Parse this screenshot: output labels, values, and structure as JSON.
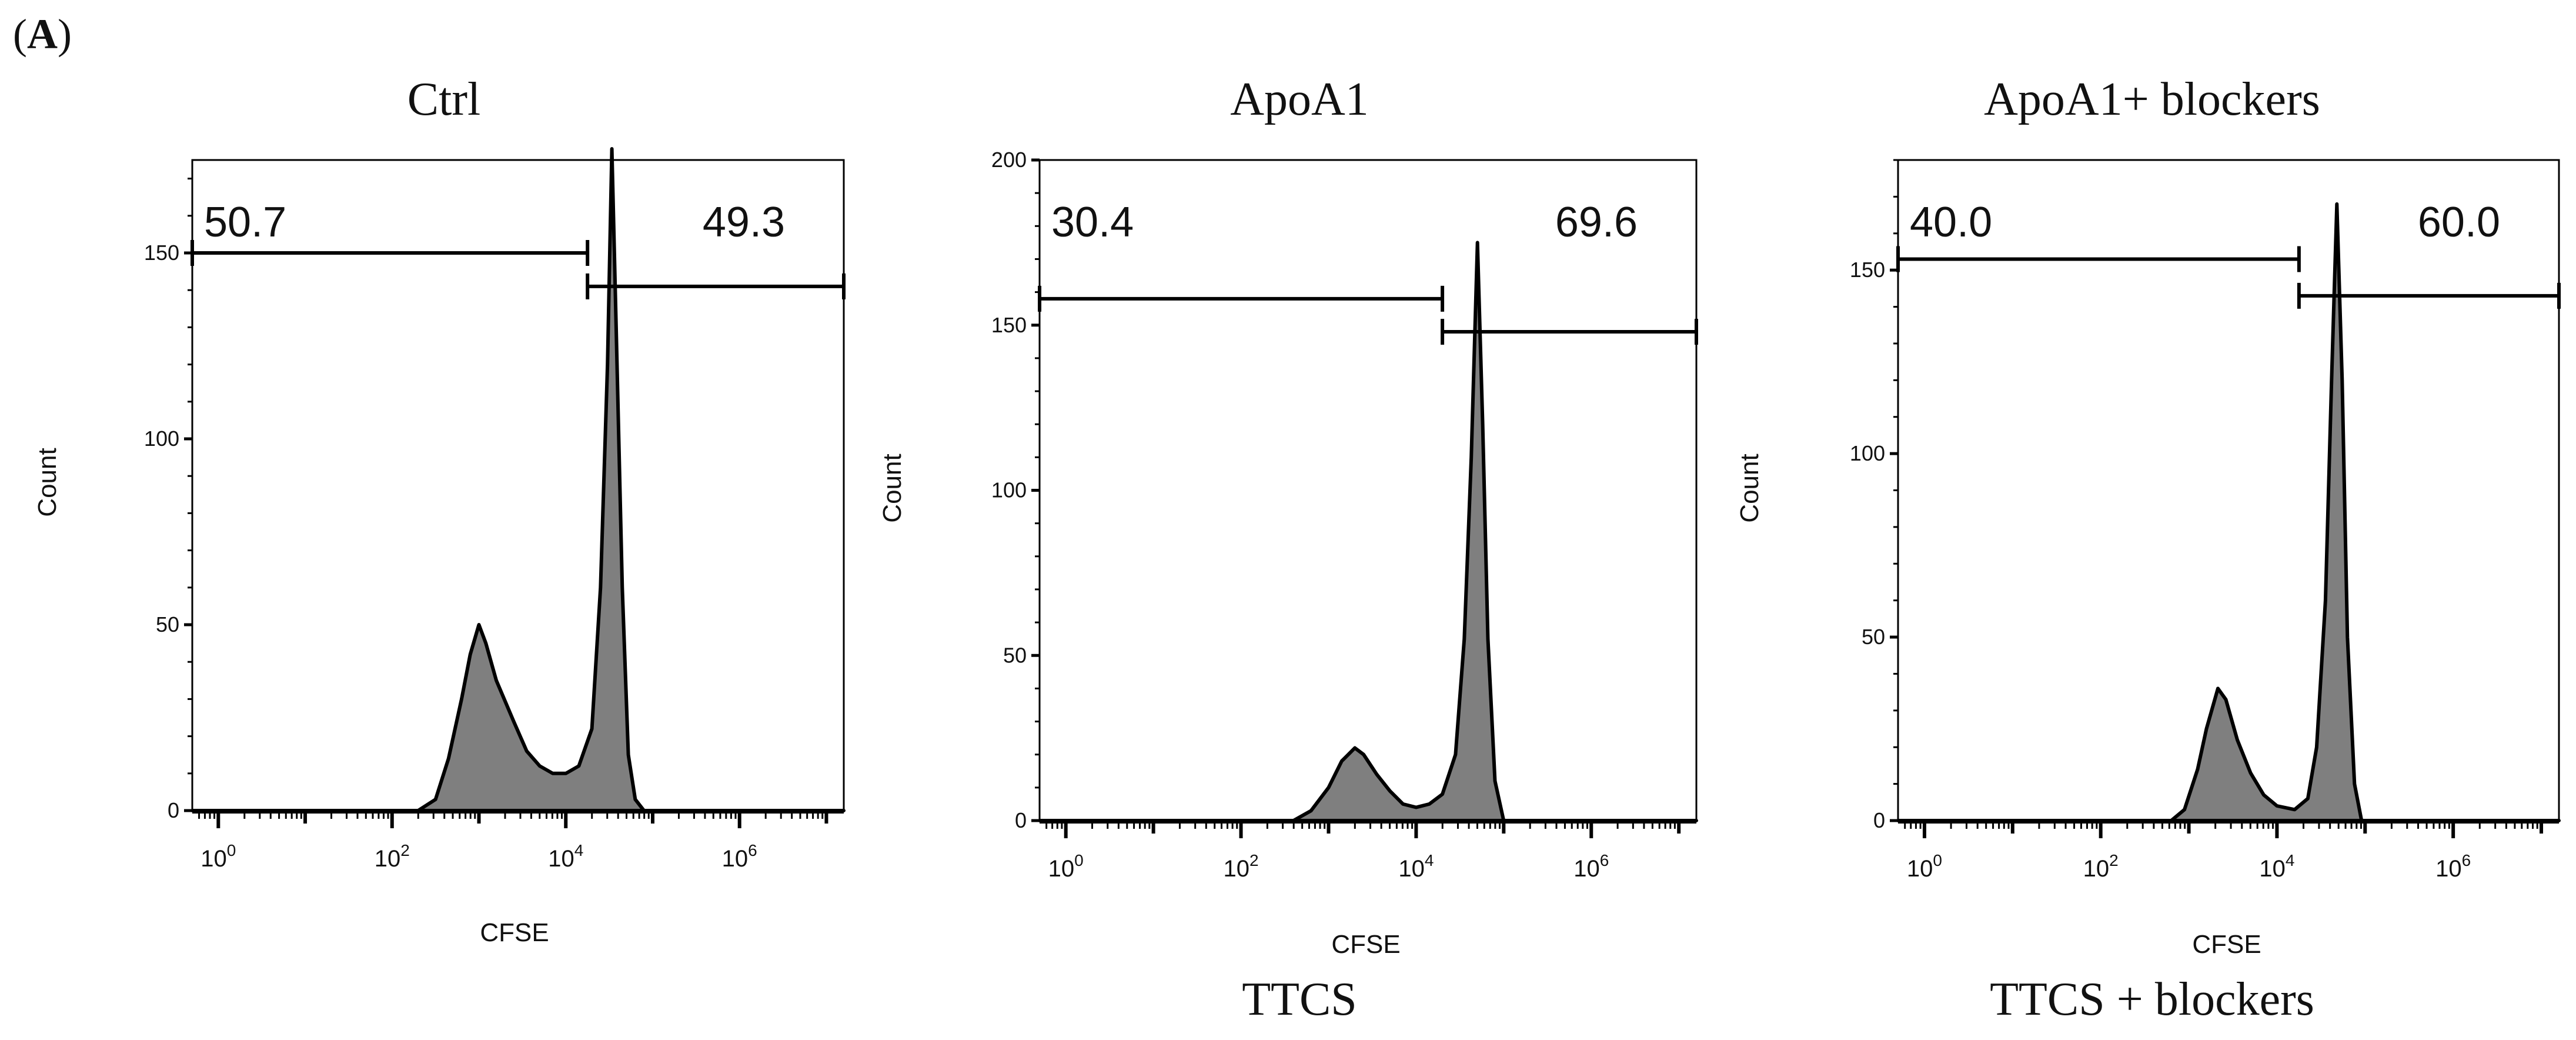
{
  "figure": {
    "panel_label_prefix": "(",
    "panel_label": "A",
    "panel_label_suffix": ")"
  },
  "style": {
    "fill_color": "#7f7f7f",
    "line_color": "#000000"
  },
  "chart_data": [
    {
      "type": "histogram",
      "title": "Ctrl",
      "xlabel": "CFSE",
      "ylabel": "Count",
      "subtitle": "",
      "xscale": "log10",
      "xlim": [
        -0.3,
        7.2
      ],
      "ylim": [
        0,
        175
      ],
      "yticks": [
        0,
        50,
        100,
        150
      ],
      "xtick_exponents": [
        0,
        2,
        4,
        6
      ],
      "gates": [
        {
          "label": "50.7",
          "x_start": -0.3,
          "x_end": 4.25,
          "y": 150,
          "end_tick": "right"
        },
        {
          "label": "49.3",
          "x_start": 4.25,
          "x_end": 7.2,
          "y": 141,
          "end_tick": "left"
        }
      ],
      "profile": [
        [
          -0.3,
          0
        ],
        [
          2.3,
          0
        ],
        [
          2.5,
          3
        ],
        [
          2.65,
          14
        ],
        [
          2.8,
          30
        ],
        [
          2.9,
          42
        ],
        [
          3.0,
          50
        ],
        [
          3.08,
          45
        ],
        [
          3.2,
          35
        ],
        [
          3.4,
          24
        ],
        [
          3.55,
          16
        ],
        [
          3.7,
          12
        ],
        [
          3.85,
          10
        ],
        [
          4.0,
          10
        ],
        [
          4.15,
          12
        ],
        [
          4.3,
          22
        ],
        [
          4.4,
          60
        ],
        [
          4.48,
          120
        ],
        [
          4.53,
          178
        ],
        [
          4.58,
          130
        ],
        [
          4.65,
          60
        ],
        [
          4.72,
          15
        ],
        [
          4.8,
          3
        ],
        [
          4.9,
          0
        ],
        [
          7.2,
          0
        ]
      ]
    },
    {
      "type": "histogram",
      "title": "ApoA1",
      "xlabel": "CFSE",
      "ylabel": "Count",
      "subtitle": "TTCS",
      "xscale": "log10",
      "xlim": [
        -0.3,
        7.2
      ],
      "ylim": [
        0,
        200
      ],
      "yticks": [
        0,
        50,
        100,
        150,
        200
      ],
      "xtick_exponents": [
        0,
        2,
        4,
        6
      ],
      "gates": [
        {
          "label": "30.4",
          "x_start": -0.3,
          "x_end": 4.3,
          "y": 158,
          "end_tick": "right"
        },
        {
          "label": "69.6",
          "x_start": 4.3,
          "x_end": 7.2,
          "y": 148,
          "end_tick": "left"
        }
      ],
      "profile": [
        [
          -0.3,
          0
        ],
        [
          2.6,
          0
        ],
        [
          2.8,
          3
        ],
        [
          3.0,
          10
        ],
        [
          3.15,
          18
        ],
        [
          3.3,
          22
        ],
        [
          3.4,
          20
        ],
        [
          3.55,
          14
        ],
        [
          3.7,
          9
        ],
        [
          3.85,
          5
        ],
        [
          4.0,
          4
        ],
        [
          4.15,
          5
        ],
        [
          4.3,
          8
        ],
        [
          4.45,
          20
        ],
        [
          4.55,
          55
        ],
        [
          4.63,
          110
        ],
        [
          4.7,
          175
        ],
        [
          4.76,
          120
        ],
        [
          4.82,
          55
        ],
        [
          4.9,
          12
        ],
        [
          5.0,
          0
        ],
        [
          7.2,
          0
        ]
      ]
    },
    {
      "type": "histogram",
      "title": "ApoA1+ blockers",
      "xlabel": "CFSE",
      "ylabel": "Count",
      "subtitle": "TTCS + blockers",
      "xscale": "log10",
      "xlim": [
        -0.3,
        7.2
      ],
      "ylim": [
        0,
        180
      ],
      "yticks": [
        0,
        50,
        100,
        150
      ],
      "xtick_exponents": [
        0,
        2,
        4,
        6
      ],
      "gates": [
        {
          "label": "40.0",
          "x_start": -0.3,
          "x_end": 4.25,
          "y": 153,
          "end_tick": "right"
        },
        {
          "label": "60.0",
          "x_start": 4.25,
          "x_end": 7.2,
          "y": 143,
          "end_tick": "left"
        }
      ],
      "profile": [
        [
          -0.3,
          0
        ],
        [
          2.8,
          0
        ],
        [
          2.95,
          3
        ],
        [
          3.1,
          14
        ],
        [
          3.2,
          25
        ],
        [
          3.33,
          36
        ],
        [
          3.42,
          33
        ],
        [
          3.55,
          22
        ],
        [
          3.7,
          13
        ],
        [
          3.85,
          7
        ],
        [
          4.0,
          4
        ],
        [
          4.2,
          3
        ],
        [
          4.35,
          6
        ],
        [
          4.45,
          20
        ],
        [
          4.55,
          60
        ],
        [
          4.62,
          120
        ],
        [
          4.68,
          168
        ],
        [
          4.74,
          120
        ],
        [
          4.8,
          50
        ],
        [
          4.88,
          10
        ],
        [
          4.96,
          0
        ],
        [
          7.2,
          0
        ]
      ]
    }
  ]
}
